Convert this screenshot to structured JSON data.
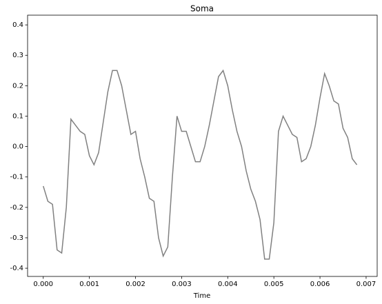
{
  "chart_data": {
    "type": "line",
    "title": "Soma",
    "xlabel": "Time",
    "x": [
      0,
      0.0001,
      0.0002,
      0.0003,
      0.0004,
      0.0005,
      0.0006,
      0.0007,
      0.0008,
      0.0009,
      0.001,
      0.0011,
      0.0012,
      0.0013,
      0.0014,
      0.0015,
      0.0016,
      0.0017,
      0.0018,
      0.0019,
      0.002,
      0.0021,
      0.0022,
      0.0023,
      0.0024,
      0.0025,
      0.0026,
      0.0027,
      0.0028,
      0.0029,
      0.003,
      0.0031,
      0.0032,
      0.0033,
      0.0034,
      0.0035,
      0.0036,
      0.0037,
      0.0038,
      0.0039,
      0.004,
      0.0041,
      0.0042,
      0.0043,
      0.0044,
      0.0045,
      0.0046,
      0.0047,
      0.0048,
      0.0049,
      0.005,
      0.0051,
      0.0052,
      0.0053,
      0.0054,
      0.0055,
      0.0056,
      0.0057,
      0.0058,
      0.0059,
      0.006,
      0.0061,
      0.0062,
      0.0063,
      0.0064,
      0.0065,
      0.0066,
      0.0067,
      0.0068
    ],
    "series": [
      {
        "color": "#808080",
        "values": [
          -0.13,
          -0.18,
          -0.19,
          -0.34,
          -0.35,
          -0.2,
          0.09,
          0.07,
          0.05,
          0.04,
          -0.03,
          -0.06,
          -0.02,
          0.08,
          0.18,
          0.25,
          0.25,
          0.2,
          0.12,
          0.04,
          0.05,
          -0.04,
          -0.1,
          -0.17,
          -0.18,
          -0.3,
          -0.36,
          -0.33,
          -0.1,
          0.1,
          0.05,
          0.05,
          0.0,
          -0.05,
          -0.05,
          0.0,
          0.07,
          0.15,
          0.23,
          0.25,
          0.2,
          0.12,
          0.05,
          0.0,
          -0.08,
          -0.14,
          -0.18,
          -0.24,
          -0.37,
          -0.37,
          -0.25,
          0.05,
          0.1,
          0.07,
          0.04,
          0.03,
          -0.05,
          -0.04,
          0.0,
          0.07,
          0.16,
          0.24,
          0.2,
          0.15,
          0.14,
          0.06,
          0.03,
          -0.04,
          -0.06
        ]
      }
    ],
    "xlim": [
      -0.00034,
      0.00724
    ],
    "xticks": [
      {
        "value": 0,
        "label": "0.000"
      },
      {
        "value": 0.001,
        "label": "0.001"
      },
      {
        "value": 0.002,
        "label": "0.002"
      },
      {
        "value": 0.003,
        "label": "0.003"
      },
      {
        "value": 0.004,
        "label": "0.004"
      },
      {
        "value": 0.005,
        "label": "0.005"
      },
      {
        "value": 0.006,
        "label": "0.006"
      },
      {
        "value": 0.007,
        "label": "0.007"
      }
    ],
    "ylim": [
      -0.427,
      0.432
    ],
    "yticks": [
      -0.4,
      -0.3,
      -0.2,
      -0.1,
      {
        "value": 0,
        "label": "0.0"
      },
      0.1,
      0.2,
      0.3,
      0.4
    ]
  }
}
